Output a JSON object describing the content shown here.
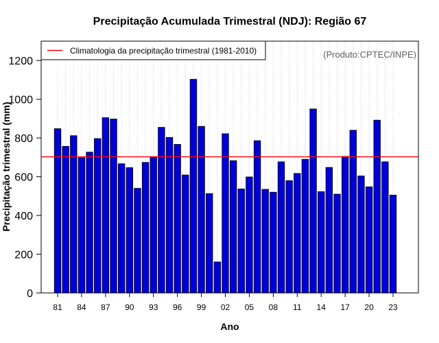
{
  "chart_data": {
    "type": "bar",
    "title": "Precipitação Acumulada Trimestral (NDJ): Região 67",
    "xlabel": "Ano",
    "ylabel": "Precipitação trimestral (mm)",
    "ylim": [
      0,
      1300
    ],
    "yticks": [
      0,
      200,
      400,
      600,
      800,
      1000,
      1200
    ],
    "categories": [
      "81",
      "82",
      "83",
      "84",
      "85",
      "86",
      "87",
      "88",
      "89",
      "90",
      "91",
      "92",
      "93",
      "94",
      "95",
      "96",
      "97",
      "98",
      "99",
      "00",
      "01",
      "02",
      "03",
      "04",
      "05",
      "06",
      "07",
      "08",
      "09",
      "10",
      "11",
      "12",
      "13",
      "14",
      "15",
      "16",
      "17",
      "18",
      "19",
      "20",
      "21",
      "22",
      "23"
    ],
    "xtick_labels": [
      "81",
      "84",
      "87",
      "90",
      "93",
      "96",
      "99",
      "02",
      "05",
      "08",
      "11",
      "14",
      "17",
      "20",
      "23"
    ],
    "xtick_indices": [
      0,
      3,
      6,
      9,
      12,
      15,
      18,
      21,
      24,
      27,
      30,
      33,
      36,
      39,
      42
    ],
    "values": [
      848,
      757,
      812,
      698,
      727,
      797,
      905,
      898,
      667,
      647,
      540,
      674,
      704,
      855,
      803,
      767,
      609,
      1103,
      860,
      513,
      160,
      822,
      683,
      537,
      599,
      786,
      535,
      520,
      677,
      580,
      617,
      690,
      950,
      523,
      648,
      510,
      705,
      840,
      604,
      548,
      892,
      677,
      505
    ],
    "bar_color": "#0000d8",
    "reference_line": {
      "value": 703,
      "color": "#ff0000",
      "label": "Climatologia da precipitação trimestral (1981-2010)"
    },
    "legend_position": "top-left",
    "grid": "vertical-dotted"
  },
  "credit": "(Produto:CPTEC/INPE)"
}
